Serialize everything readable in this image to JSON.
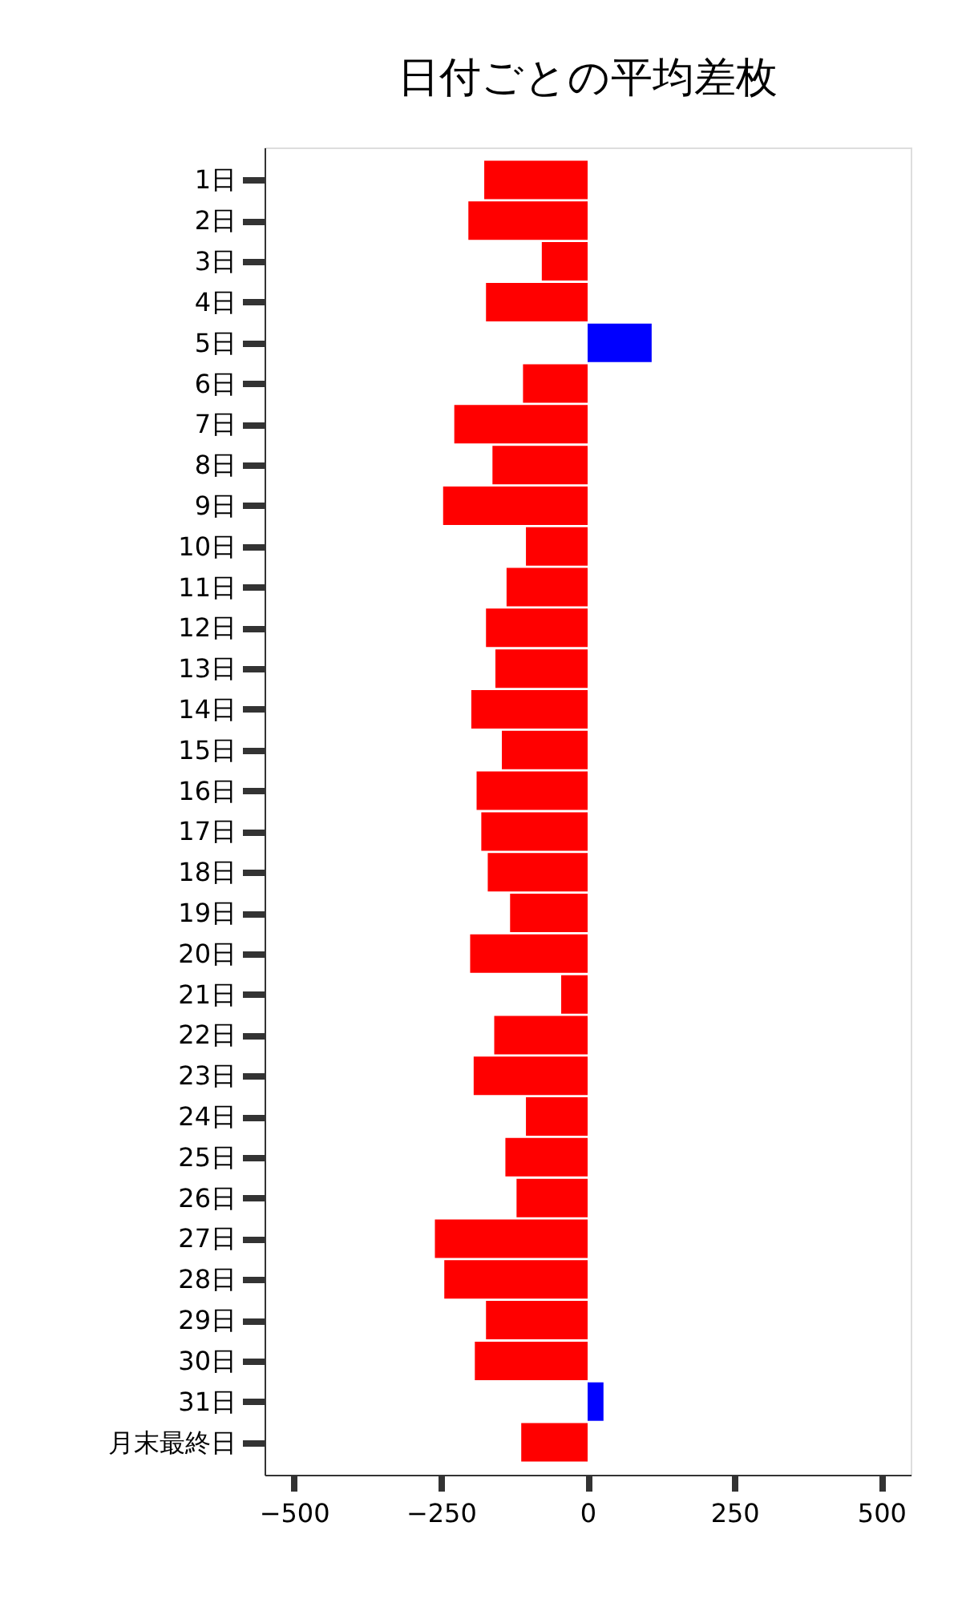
{
  "chart_data": {
    "type": "bar",
    "orientation": "horizontal",
    "title": "日付ごとの平均差枚",
    "categories": [
      "1日",
      "2日",
      "3日",
      "4日",
      "5日",
      "6日",
      "7日",
      "8日",
      "9日",
      "10日",
      "11日",
      "12日",
      "13日",
      "14日",
      "15日",
      "16日",
      "17日",
      "18日",
      "19日",
      "20日",
      "21日",
      "22日",
      "23日",
      "24日",
      "25日",
      "26日",
      "27日",
      "28日",
      "29日",
      "30日",
      "31日",
      "月末最終日"
    ],
    "values": [
      -176,
      -203,
      -78,
      -173,
      109,
      -110,
      -227,
      -162,
      -246,
      -105,
      -138,
      -173,
      -157,
      -198,
      -146,
      -189,
      -181,
      -170,
      -132,
      -200,
      -45,
      -159,
      -194,
      -105,
      -140,
      -121,
      -260,
      -244,
      -173,
      -192,
      27,
      -113
    ],
    "colors": [
      "#ff0000",
      "#ff0000",
      "#ff0000",
      "#ff0000",
      "#0000ff",
      "#ff0000",
      "#ff0000",
      "#ff0000",
      "#ff0000",
      "#ff0000",
      "#ff0000",
      "#ff0000",
      "#ff0000",
      "#ff0000",
      "#ff0000",
      "#ff0000",
      "#ff0000",
      "#ff0000",
      "#ff0000",
      "#ff0000",
      "#ff0000",
      "#ff0000",
      "#ff0000",
      "#ff0000",
      "#ff0000",
      "#ff0000",
      "#ff0000",
      "#ff0000",
      "#ff0000",
      "#ff0000",
      "#0000ff",
      "#ff0000"
    ],
    "xlim": [
      -550,
      550
    ],
    "xticks": [
      -500,
      -250,
      0,
      250,
      500
    ],
    "grid": false
  }
}
